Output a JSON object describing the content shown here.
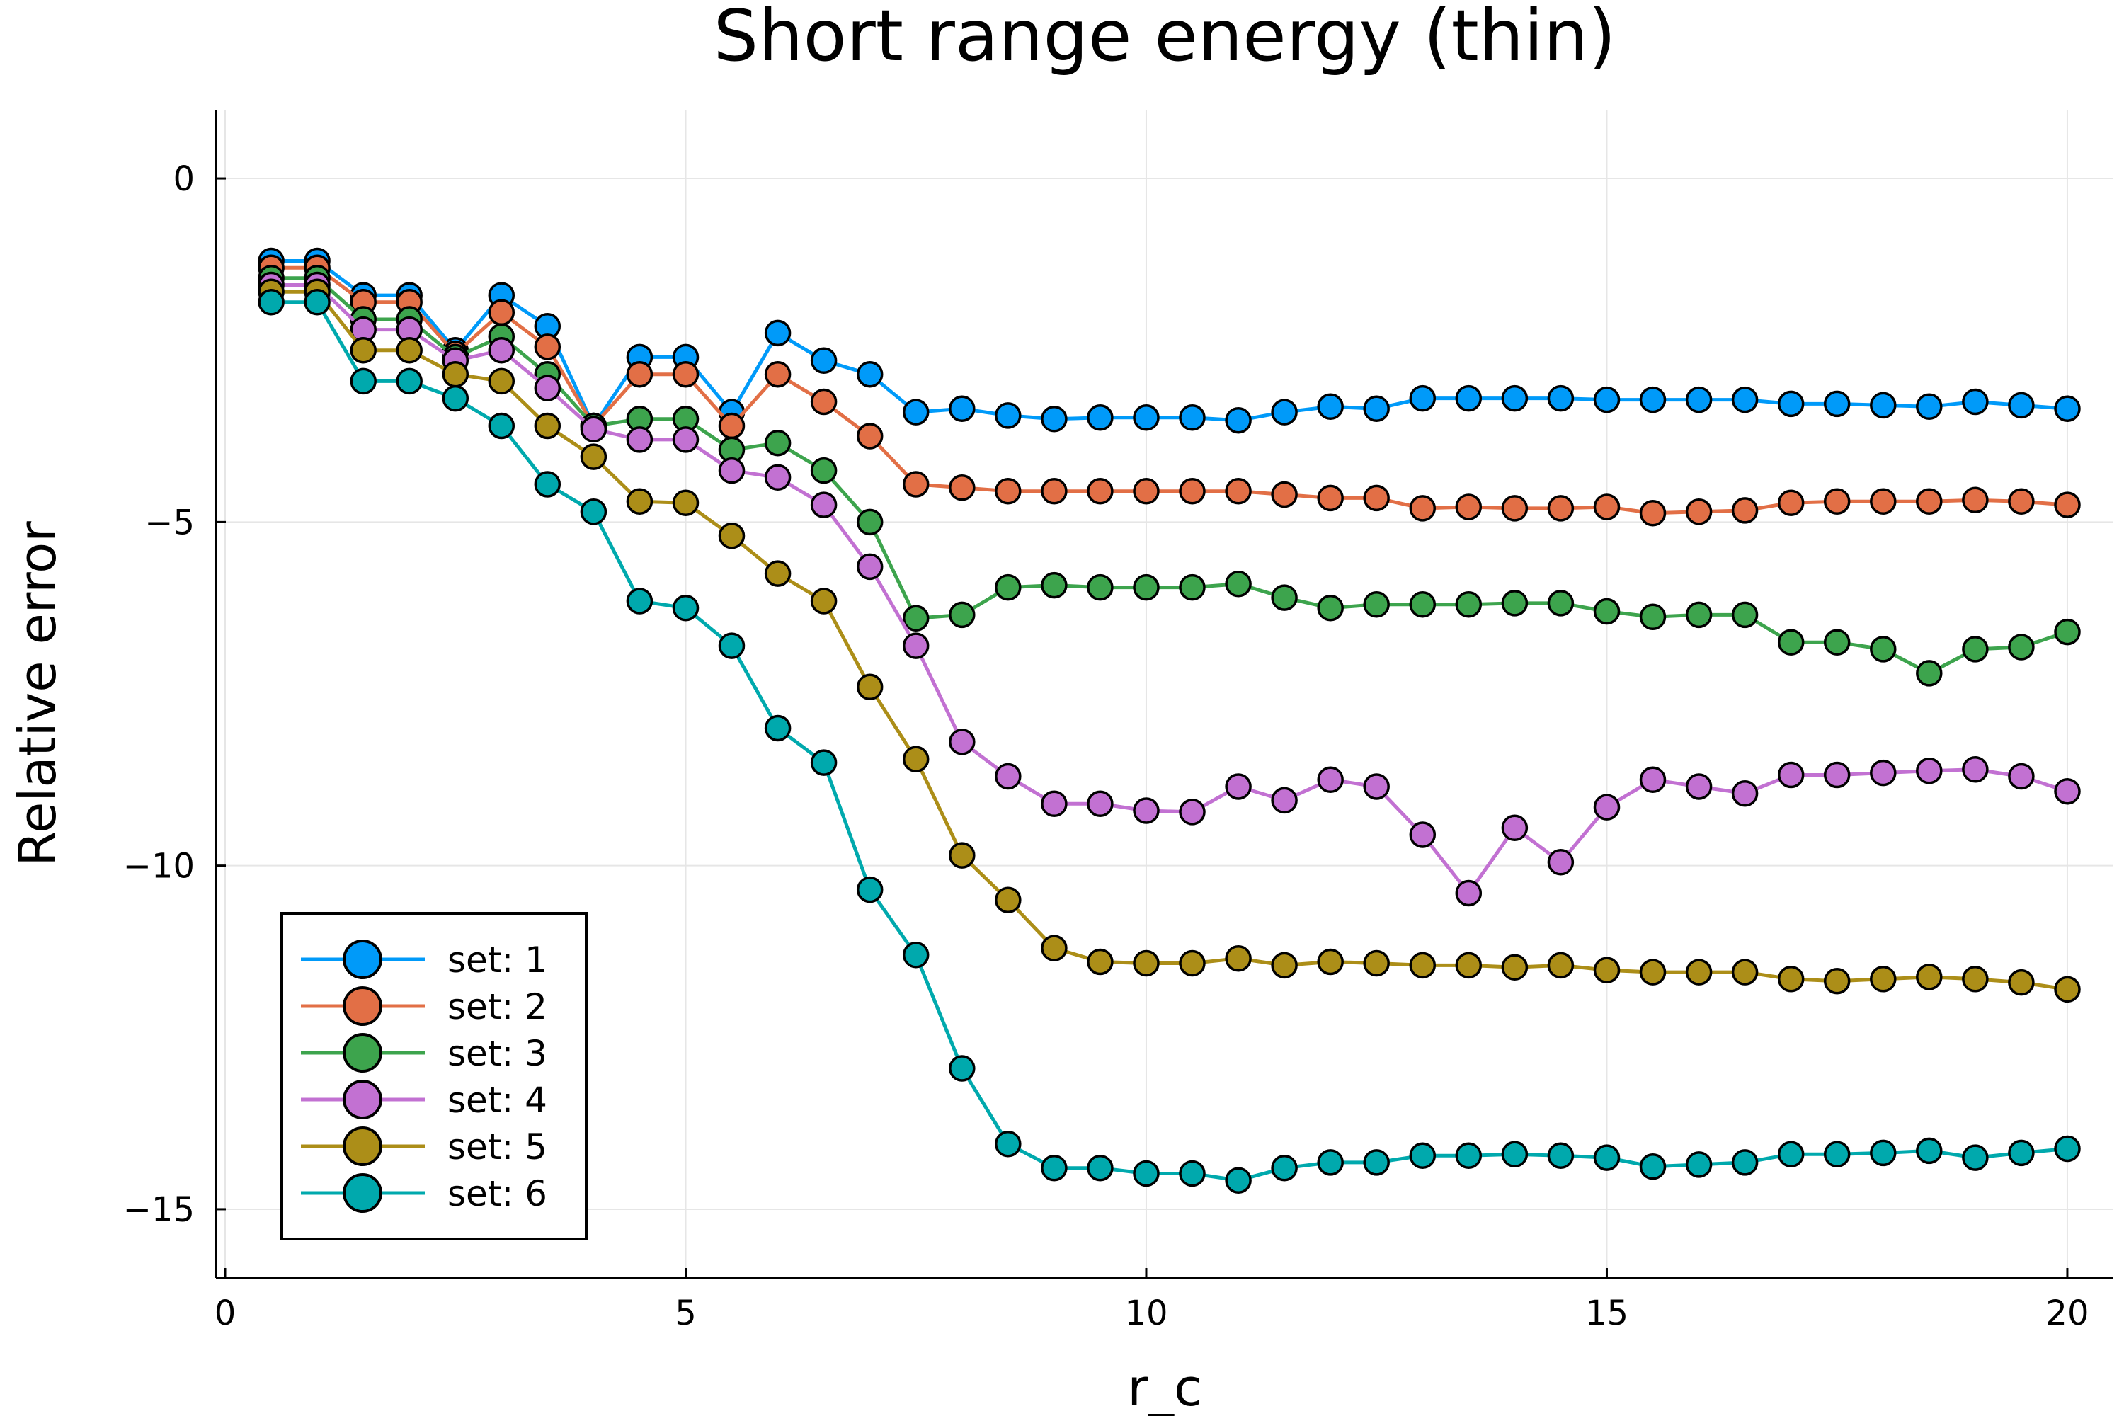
{
  "chart_data": {
    "type": "line",
    "title": "Short range energy (thin)",
    "xlabel": "r_c",
    "ylabel": "Relative error",
    "xlim": [
      -0.1,
      20.5
    ],
    "ylim": [
      -16,
      1
    ],
    "xticks": [
      0,
      5,
      10,
      15,
      20
    ],
    "xtick_labels": [
      "0",
      "5",
      "10",
      "15",
      "20"
    ],
    "yticks": [
      0,
      -5,
      -10,
      -15
    ],
    "ytick_labels": [
      "0",
      "−5",
      "−10",
      "−15"
    ],
    "grid": true,
    "legend_position": "bottom-left",
    "x": [
      0.5,
      1,
      1.5,
      2,
      2.5,
      3,
      3.5,
      4,
      4.5,
      5,
      5.5,
      6,
      6.5,
      7,
      7.5,
      8,
      8.5,
      9,
      9.5,
      10,
      10.5,
      11,
      11.5,
      12,
      12.5,
      13,
      13.5,
      14,
      14.5,
      15,
      15.5,
      16,
      16.5,
      17,
      17.5,
      18,
      18.5,
      19,
      19.5,
      20
    ],
    "series": [
      {
        "name": "set: 1",
        "color": "#009af9",
        "values": [
          -1.2,
          -1.2,
          -1.7,
          -1.7,
          -2.5,
          -1.7,
          -2.15,
          -3.6,
          -2.6,
          -2.6,
          -3.4,
          -2.25,
          -2.65,
          -2.85,
          -3.4,
          -3.35,
          -3.45,
          -3.5,
          -3.48,
          -3.48,
          -3.48,
          -3.52,
          -3.4,
          -3.32,
          -3.35,
          -3.2,
          -3.2,
          -3.2,
          -3.2,
          -3.22,
          -3.22,
          -3.22,
          -3.22,
          -3.28,
          -3.28,
          -3.3,
          -3.32,
          -3.25,
          -3.3,
          -3.35
        ]
      },
      {
        "name": "set: 2",
        "color": "#e26f46",
        "values": [
          -1.3,
          -1.3,
          -1.8,
          -1.8,
          -2.55,
          -1.95,
          -2.45,
          -3.6,
          -2.85,
          -2.85,
          -3.6,
          -2.85,
          -3.25,
          -3.75,
          -4.45,
          -4.5,
          -4.55,
          -4.55,
          -4.55,
          -4.55,
          -4.55,
          -4.55,
          -4.6,
          -4.65,
          -4.65,
          -4.8,
          -4.78,
          -4.8,
          -4.8,
          -4.78,
          -4.87,
          -4.85,
          -4.83,
          -4.72,
          -4.7,
          -4.7,
          -4.7,
          -4.68,
          -4.7,
          -4.75
        ]
      },
      {
        "name": "set: 3",
        "color": "#3da44d",
        "values": [
          -1.45,
          -1.45,
          -2.05,
          -2.05,
          -2.6,
          -2.3,
          -2.85,
          -3.6,
          -3.5,
          -3.5,
          -3.95,
          -3.85,
          -4.25,
          -5.0,
          -6.4,
          -6.35,
          -5.95,
          -5.92,
          -5.95,
          -5.95,
          -5.95,
          -5.9,
          -6.1,
          -6.25,
          -6.2,
          -6.2,
          -6.2,
          -6.18,
          -6.18,
          -6.3,
          -6.38,
          -6.35,
          -6.35,
          -6.75,
          -6.75,
          -6.85,
          -7.2,
          -6.85,
          -6.82,
          -6.6
        ]
      },
      {
        "name": "set: 4",
        "color": "#c271d2",
        "values": [
          -1.55,
          -1.55,
          -2.2,
          -2.2,
          -2.65,
          -2.5,
          -3.05,
          -3.65,
          -3.8,
          -3.8,
          -4.25,
          -4.35,
          -4.75,
          -5.65,
          -6.8,
          -8.2,
          -8.7,
          -9.1,
          -9.1,
          -9.2,
          -9.22,
          -8.85,
          -9.05,
          -8.75,
          -8.85,
          -9.55,
          -10.4,
          -9.45,
          -9.95,
          -9.15,
          -8.75,
          -8.85,
          -8.95,
          -8.68,
          -8.68,
          -8.65,
          -8.62,
          -8.6,
          -8.7,
          -8.92
        ]
      },
      {
        "name": "set: 5",
        "color": "#ac8e18",
        "values": [
          -1.65,
          -1.65,
          -2.5,
          -2.5,
          -2.85,
          -2.95,
          -3.6,
          -4.05,
          -4.7,
          -4.72,
          -5.2,
          -5.75,
          -6.15,
          -7.4,
          -8.45,
          -9.85,
          -10.5,
          -11.2,
          -11.4,
          -11.42,
          -11.42,
          -11.35,
          -11.45,
          -11.4,
          -11.42,
          -11.45,
          -11.45,
          -11.48,
          -11.45,
          -11.52,
          -11.55,
          -11.55,
          -11.55,
          -11.65,
          -11.68,
          -11.65,
          -11.62,
          -11.65,
          -11.7,
          -11.8
        ]
      },
      {
        "name": "set: 6",
        "color": "#00a9ad",
        "values": [
          -1.8,
          -1.8,
          -2.95,
          -2.95,
          -3.2,
          -3.6,
          -4.45,
          -4.85,
          -6.15,
          -6.25,
          -6.8,
          -8.0,
          -8.5,
          -10.35,
          -11.3,
          -12.95,
          -14.05,
          -14.4,
          -14.4,
          -14.48,
          -14.48,
          -14.58,
          -14.4,
          -14.32,
          -14.32,
          -14.22,
          -14.22,
          -14.2,
          -14.22,
          -14.25,
          -14.38,
          -14.35,
          -14.32,
          -14.2,
          -14.2,
          -14.18,
          -14.15,
          -14.25,
          -14.18,
          -14.12
        ]
      }
    ]
  }
}
